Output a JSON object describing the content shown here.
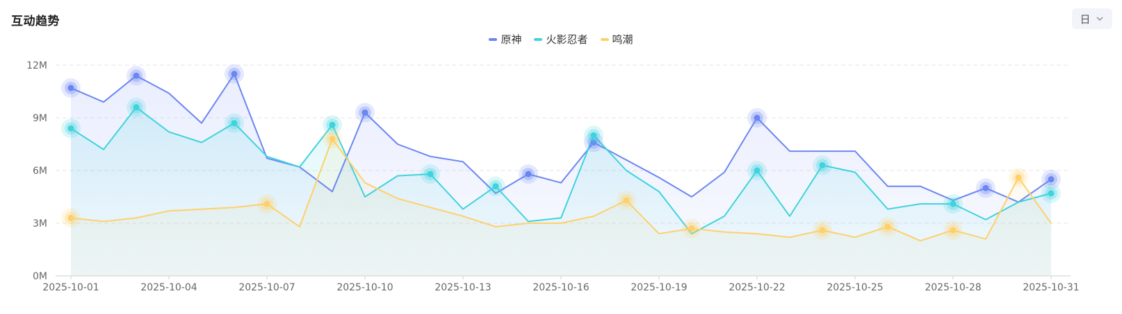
{
  "header": {
    "title": "互动趋势",
    "period_label": "日",
    "period_icon": "chevron-down-icon"
  },
  "colors": {
    "原神": "#6b86f2",
    "火影忍者": "#3ed3dd",
    "鸣潮": "#ffd06a",
    "grid": "#e6e6e6",
    "axis": "#cfcfcf"
  },
  "chart_data": {
    "type": "line",
    "x": [
      "2025-10-01",
      "2025-10-02",
      "2025-10-03",
      "2025-10-04",
      "2025-10-05",
      "2025-10-06",
      "2025-10-07",
      "2025-10-08",
      "2025-10-09",
      "2025-10-10",
      "2025-10-11",
      "2025-10-12",
      "2025-10-13",
      "2025-10-14",
      "2025-10-15",
      "2025-10-16",
      "2025-10-17",
      "2025-10-18",
      "2025-10-19",
      "2025-10-20",
      "2025-10-21",
      "2025-10-22",
      "2025-10-23",
      "2025-10-24",
      "2025-10-25",
      "2025-10-26",
      "2025-10-27",
      "2025-10-28",
      "2025-10-29",
      "2025-10-30",
      "2025-10-31"
    ],
    "x_tick_labels": [
      "2025-10-01",
      "2025-10-04",
      "2025-10-07",
      "2025-10-10",
      "2025-10-13",
      "2025-10-16",
      "2025-10-19",
      "2025-10-22",
      "2025-10-25",
      "2025-10-28",
      "2025-10-31"
    ],
    "y_tick_labels": [
      "0M",
      "3M",
      "6M",
      "9M",
      "12M"
    ],
    "ylim": [
      0,
      12
    ],
    "y_unit": "M",
    "grid": true,
    "legend_position": "top-center",
    "series": [
      {
        "name": "原神",
        "values": [
          10.7,
          9.9,
          11.4,
          10.4,
          8.7,
          11.5,
          6.7,
          6.2,
          4.8,
          9.3,
          7.5,
          6.8,
          6.5,
          4.7,
          5.8,
          5.3,
          7.6,
          6.6,
          5.6,
          4.5,
          5.9,
          9.0,
          7.1,
          7.1,
          7.1,
          5.1,
          5.1,
          4.3,
          5.0,
          4.2,
          5.5
        ],
        "highlight_indices": [
          0,
          2,
          5,
          9,
          14,
          16,
          21,
          28,
          30
        ]
      },
      {
        "name": "火影忍者",
        "values": [
          8.4,
          7.2,
          9.6,
          8.2,
          7.6,
          8.7,
          6.8,
          6.2,
          8.6,
          4.5,
          5.7,
          5.8,
          3.8,
          5.1,
          3.1,
          3.3,
          8.0,
          6.0,
          4.8,
          2.4,
          3.4,
          6.0,
          3.4,
          6.3,
          5.9,
          3.8,
          4.1,
          4.1,
          3.2,
          4.2,
          4.7
        ],
        "highlight_indices": [
          0,
          2,
          5,
          8,
          11,
          13,
          16,
          21,
          23,
          27,
          30
        ]
      },
      {
        "name": "鸣潮",
        "values": [
          3.3,
          3.1,
          3.3,
          3.7,
          3.8,
          3.9,
          4.1,
          2.8,
          7.8,
          5.3,
          4.4,
          3.9,
          3.4,
          2.8,
          3.0,
          3.0,
          3.4,
          4.3,
          2.4,
          2.7,
          2.5,
          2.4,
          2.2,
          2.6,
          2.2,
          2.8,
          2.0,
          2.6,
          2.1,
          5.6,
          3.0
        ],
        "highlight_indices": [
          0,
          6,
          8,
          17,
          19,
          23,
          25,
          27,
          29
        ]
      }
    ]
  }
}
